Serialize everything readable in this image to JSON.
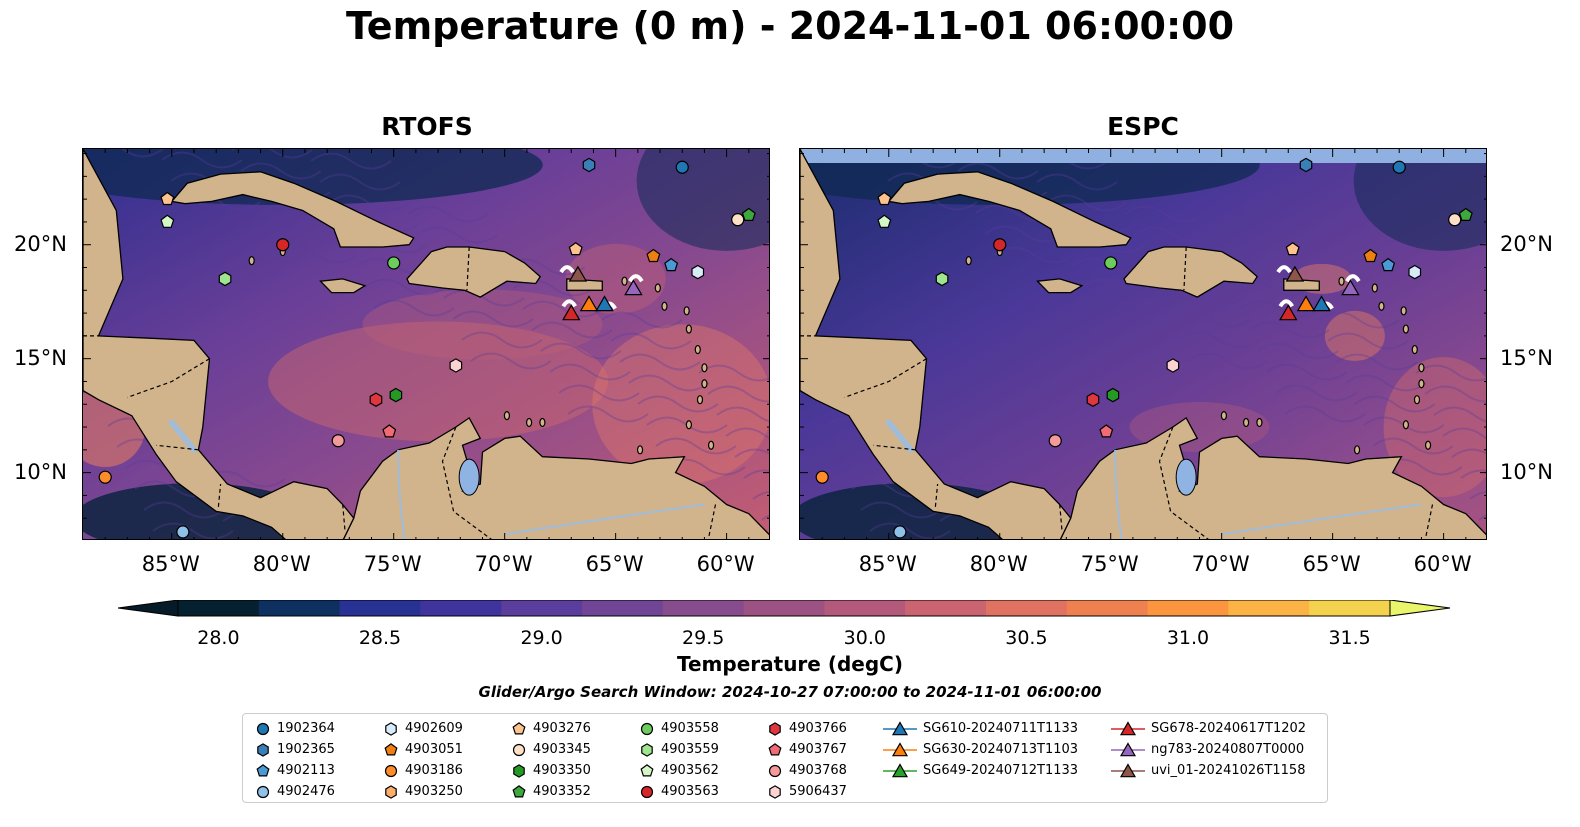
{
  "title": "Temperature (0 m) - 2024-11-01 06:00:00",
  "panels": [
    {
      "name": "RTOFS"
    },
    {
      "name": "ESPC"
    }
  ],
  "lon_labels": [
    "85°W",
    "80°W",
    "75°W",
    "70°W",
    "65°W",
    "60°W"
  ],
  "lat_labels": [
    "20°N",
    "15°N",
    "10°N"
  ],
  "colorbar": {
    "ticks": [
      "28.0",
      "28.5",
      "29.0",
      "29.5",
      "30.0",
      "30.5",
      "31.0",
      "31.5"
    ],
    "label": "Temperature (degC)",
    "colors": [
      "#05212f",
      "#0d3060",
      "#283295",
      "#3f349e",
      "#5a3d9c",
      "#714595",
      "#874c8e",
      "#9c5384",
      "#b2597c",
      "#ca6471",
      "#e07261",
      "#ef8050",
      "#fb9540",
      "#fbb346",
      "#f4d24e"
    ],
    "extend_low": "#061b27",
    "extend_high": "#e9f56a"
  },
  "search_window": "Glider/Argo Search Window: 2024-10-27 07:00:00 to 2024-11-01 06:00:00",
  "legend": {
    "columns": [
      [
        {
          "label": "1902364",
          "marker": "circle",
          "color": "#1f77b4"
        },
        {
          "label": "1902365",
          "marker": "hexagon",
          "color": "#3a7fb8"
        },
        {
          "label": "4902113",
          "marker": "pentagon",
          "color": "#4b9ad6"
        },
        {
          "label": "4902476",
          "marker": "circle",
          "color": "#8fc2e8"
        }
      ],
      [
        {
          "label": "4902609",
          "marker": "hexagon",
          "color": "#d7ecf8"
        },
        {
          "label": "4903051",
          "marker": "pentagon",
          "color": "#f07f13"
        },
        {
          "label": "4903186",
          "marker": "circle",
          "color": "#ff8c2a"
        },
        {
          "label": "4903250",
          "marker": "hexagon",
          "color": "#fdad6b"
        }
      ],
      [
        {
          "label": "4903276",
          "marker": "pentagon",
          "color": "#fdc28e"
        },
        {
          "label": "4903345",
          "marker": "circle",
          "color": "#fde0c5"
        },
        {
          "label": "4903350",
          "marker": "hexagon",
          "color": "#249a25"
        },
        {
          "label": "4903352",
          "marker": "pentagon",
          "color": "#3ea83e"
        }
      ],
      [
        {
          "label": "4903558",
          "marker": "circle",
          "color": "#6ccd5c"
        },
        {
          "label": "4903559",
          "marker": "hexagon",
          "color": "#9fe58f"
        },
        {
          "label": "4903562",
          "marker": "pentagon",
          "color": "#d4f7c8"
        },
        {
          "label": "4903563",
          "marker": "circle",
          "color": "#d62728"
        }
      ],
      [
        {
          "label": "4903766",
          "marker": "hexagon",
          "color": "#e0363f"
        },
        {
          "label": "4903767",
          "marker": "pentagon",
          "color": "#f06b74"
        },
        {
          "label": "4903768",
          "marker": "circle",
          "color": "#f59a9a"
        },
        {
          "label": "5906437",
          "marker": "hexagon",
          "color": "#fcd2d2"
        }
      ],
      [
        {
          "label": "SG610-20240711T1133",
          "marker": "triangle",
          "color": "#1f77b4"
        },
        {
          "label": "SG630-20240713T1103",
          "marker": "triangle",
          "color": "#ff7f0e"
        },
        {
          "label": "SG649-20240712T1133",
          "marker": "triangle",
          "color": "#2ca02c"
        }
      ],
      [
        {
          "label": "SG678-20240617T1202",
          "marker": "triangle",
          "color": "#d62728"
        },
        {
          "label": "ng783-20240807T0000",
          "marker": "triangle",
          "color": "#9467bd"
        },
        {
          "label": "uvi_01-20241026T1158",
          "marker": "triangle",
          "color": "#8c564b"
        }
      ]
    ]
  },
  "map": {
    "lon_range": [
      -89,
      -58
    ],
    "lat_range": [
      7,
      24.2
    ],
    "land_color": "#d2b48c",
    "lake_color": "#8fb4e3",
    "river_color": "#a0bcd8",
    "missing_band_color": "#8fb0e0",
    "floats": [
      {
        "id": "1902364",
        "lon": -66.2,
        "lat": 23.5,
        "marker": "hexagon",
        "color": "#3a7fb8",
        "note": "shown with 1902365 style"
      },
      {
        "id": "1902364",
        "lon": -62.0,
        "lat": 23.4,
        "marker": "circle",
        "color": "#1f77b4"
      },
      {
        "id": "4903276",
        "lon": -85.2,
        "lat": 22.0,
        "marker": "pentagon",
        "color": "#fdc28e"
      },
      {
        "id": "4903562",
        "lon": -85.2,
        "lat": 21.0,
        "marker": "pentagon",
        "color": "#d4f7c8"
      },
      {
        "id": "4903563",
        "lon": -80.0,
        "lat": 20.0,
        "marker": "circle",
        "color": "#d62728"
      },
      {
        "id": "4903558",
        "lon": -75.0,
        "lat": 19.2,
        "marker": "circle",
        "color": "#6ccd5c"
      },
      {
        "id": "4903559",
        "lon": -82.6,
        "lat": 18.5,
        "marker": "hexagon",
        "color": "#9fe58f"
      },
      {
        "id": "4903276",
        "lon": -66.8,
        "lat": 19.8,
        "marker": "pentagon",
        "color": "#fdc28e"
      },
      {
        "id": "4903051",
        "lon": -63.3,
        "lat": 19.5,
        "marker": "pentagon",
        "color": "#f07f13"
      },
      {
        "id": "4902113",
        "lon": -62.5,
        "lat": 19.1,
        "marker": "pentagon",
        "color": "#4b9ad6"
      },
      {
        "id": "4902609",
        "lon": -61.3,
        "lat": 18.8,
        "marker": "hexagon",
        "color": "#d7ecf8"
      },
      {
        "id": "4903345",
        "lon": -59.5,
        "lat": 21.1,
        "marker": "circle",
        "color": "#fde0c5"
      },
      {
        "id": "4903352",
        "lon": -59.0,
        "lat": 21.3,
        "marker": "pentagon",
        "color": "#3ea83e"
      },
      {
        "id": "5906437",
        "lon": -72.2,
        "lat": 14.7,
        "marker": "hexagon",
        "color": "#fcd2d2"
      },
      {
        "id": "4903766",
        "lon": -75.8,
        "lat": 13.2,
        "marker": "hexagon",
        "color": "#e0363f"
      },
      {
        "id": "4903350",
        "lon": -74.9,
        "lat": 13.4,
        "marker": "hexagon",
        "color": "#249a25"
      },
      {
        "id": "4903767",
        "lon": -75.2,
        "lat": 11.8,
        "marker": "pentagon",
        "color": "#f06b74"
      },
      {
        "id": "4903768",
        "lon": -77.5,
        "lat": 11.4,
        "marker": "circle",
        "color": "#f59a9a"
      },
      {
        "id": "4903186",
        "lon": -88.0,
        "lat": 9.8,
        "marker": "circle",
        "color": "#ff8c2a"
      },
      {
        "id": "4902476",
        "lon": -84.5,
        "lat": 7.4,
        "marker": "circle",
        "color": "#8fc2e8"
      }
    ],
    "gliders": [
      {
        "id": "uvi_01-20241026T1158",
        "lon": -66.7,
        "lat": 18.7,
        "color": "#8c564b"
      },
      {
        "id": "SG678-20240617T1202",
        "lon": -67.0,
        "lat": 17.0,
        "color": "#d62728"
      },
      {
        "id": "SG630-20240713T1103",
        "lon": -66.2,
        "lat": 17.4,
        "color": "#ff7f0e"
      },
      {
        "id": "SG610-20240711T1133",
        "lon": -65.5,
        "lat": 17.4,
        "color": "#1f77b4"
      },
      {
        "id": "ng783-20240807T0000",
        "lon": -64.2,
        "lat": 18.1,
        "color": "#9467bd"
      }
    ]
  }
}
